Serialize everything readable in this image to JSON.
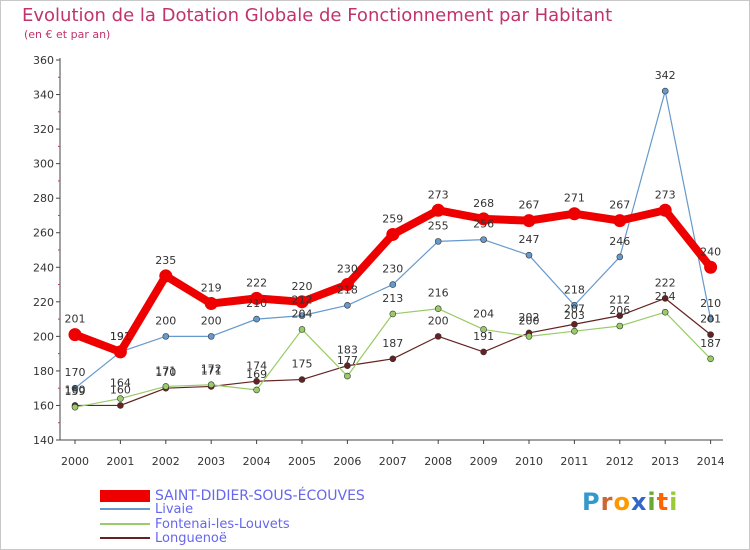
{
  "chart_data": {
    "type": "line",
    "title": "Evolution de la Dotation Globale de Fonctionnement par Habitant",
    "subtitle": "(en € et par an)",
    "xlabel": "",
    "ylabel": "",
    "ylim": [
      140,
      360
    ],
    "yticks": [
      "140",
      "160",
      "180",
      "200",
      "220",
      "240",
      "260",
      "280",
      "300",
      "320",
      "340",
      "360"
    ],
    "categories": [
      "2000",
      "2001",
      "2002",
      "2003",
      "2004",
      "2005",
      "2006",
      "2007",
      "2008",
      "2009",
      "2010",
      "2011",
      "2012",
      "2013",
      "2014"
    ],
    "series": [
      {
        "name": "SAINT-DIDIER-SOUS-ÉCOUVES",
        "color": "#ee0000",
        "values": [
          201,
          191,
          235,
          219,
          222,
          220,
          230,
          259,
          273,
          268,
          267,
          271,
          267,
          273,
          240
        ]
      },
      {
        "name": "Livaie",
        "color": "#6699cc",
        "values": [
          170,
          191,
          200,
          200,
          210,
          212,
          218,
          230,
          255,
          256,
          247,
          218,
          246,
          342,
          210
        ]
      },
      {
        "name": "Fontenai-les-Louvets",
        "color": "#99cc66",
        "values": [
          159,
          164,
          171,
          172,
          169,
          204,
          177,
          213,
          216,
          204,
          200,
          203,
          206,
          214,
          187
        ]
      },
      {
        "name": "Longuenoë",
        "color": "#662222",
        "values": [
          160,
          160,
          170,
          171,
          174,
          175,
          183,
          187,
          200,
          191,
          202,
          207,
          212,
          222,
          201
        ]
      }
    ],
    "point_labels": {
      "SAINT-DIDIER-SOUS-ÉCOUVES": [
        "201",
        "191",
        "235",
        "219",
        "222",
        "220",
        "230",
        "259",
        "273",
        "268",
        "267",
        "271",
        "267",
        "273",
        "240"
      ],
      "Livaie": [
        "170",
        "191",
        "200",
        "200",
        "210",
        "212",
        "218",
        "230",
        "255",
        "256",
        "247",
        "218",
        "246",
        "342",
        "210"
      ],
      "Fontenai-les-Louvets": [
        "159",
        "164",
        "171",
        "172",
        "169",
        "204",
        "177",
        "213",
        "216",
        "204",
        "200",
        "203",
        "206",
        "214",
        "187"
      ],
      "Longuenoë": [
        "160",
        "160",
        "170",
        "171",
        "174",
        "175",
        "183",
        "187",
        "200",
        "191",
        "202",
        "207",
        "212",
        "222",
        "201"
      ]
    },
    "legend_position": "bottom-left",
    "grid": false
  },
  "logo": {
    "letters": [
      "P",
      "r",
      "o",
      "x",
      "i",
      "t",
      "i"
    ],
    "colors": [
      "#3399cc",
      "#cc6633",
      "#ff9900",
      "#3366cc",
      "#66aa33",
      "#ff6600",
      "#99cc33"
    ]
  }
}
